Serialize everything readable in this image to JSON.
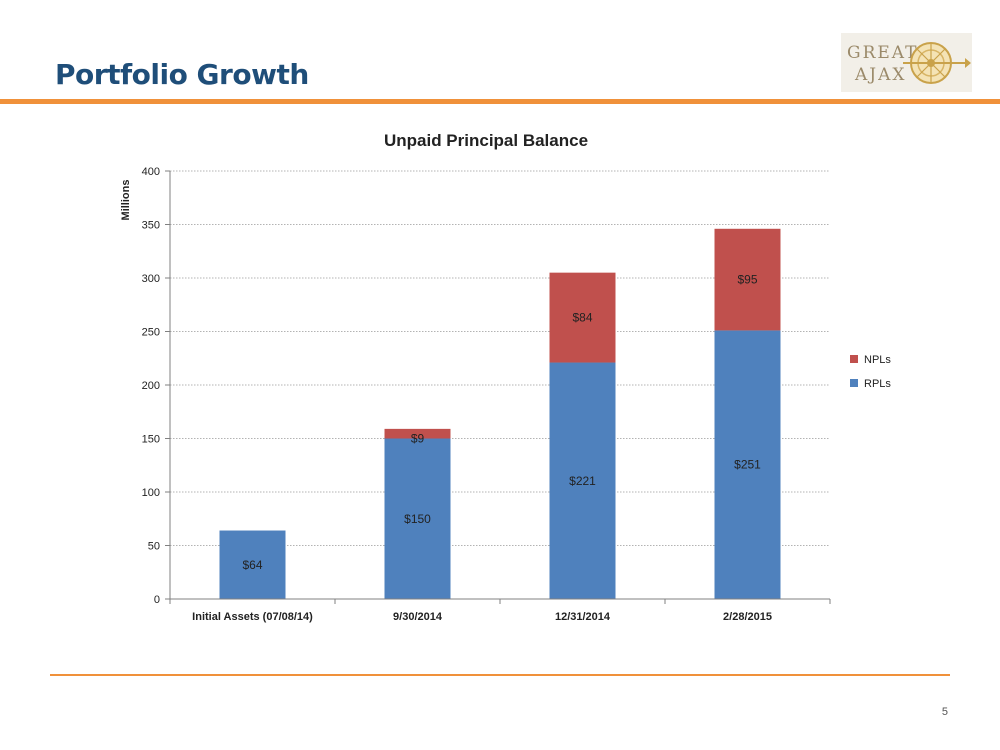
{
  "header": {
    "title": "Portfolio Growth",
    "logo": {
      "line1": "GREAT",
      "line2": "AJAX"
    }
  },
  "footer": {
    "page_number": "5"
  },
  "colors": {
    "title": "#1f4e79",
    "accent": "#f0913a",
    "rpl": "#4f81bd",
    "npl": "#c0504d"
  },
  "chart_data": {
    "type": "bar",
    "stacked": true,
    "title": "Unpaid Principal Balance",
    "ylabel": "Millions",
    "xlabel": "",
    "ylim": [
      0,
      400
    ],
    "yticks": [
      0,
      50,
      100,
      150,
      200,
      250,
      300,
      350,
      400
    ],
    "grid": true,
    "legend_position": "right",
    "categories": [
      "Initial Assets (07/08/14)",
      "9/30/2014",
      "12/31/2014",
      "2/28/2015"
    ],
    "series": [
      {
        "name": "RPLs",
        "color": "#4f81bd",
        "values": [
          64,
          150,
          221,
          251
        ],
        "labels": [
          "$64",
          "$150",
          "$221",
          "$251"
        ]
      },
      {
        "name": "NPLs",
        "color": "#c0504d",
        "values": [
          0,
          9,
          84,
          95
        ],
        "labels": [
          "",
          "$9",
          "$84",
          "$95"
        ]
      }
    ]
  }
}
